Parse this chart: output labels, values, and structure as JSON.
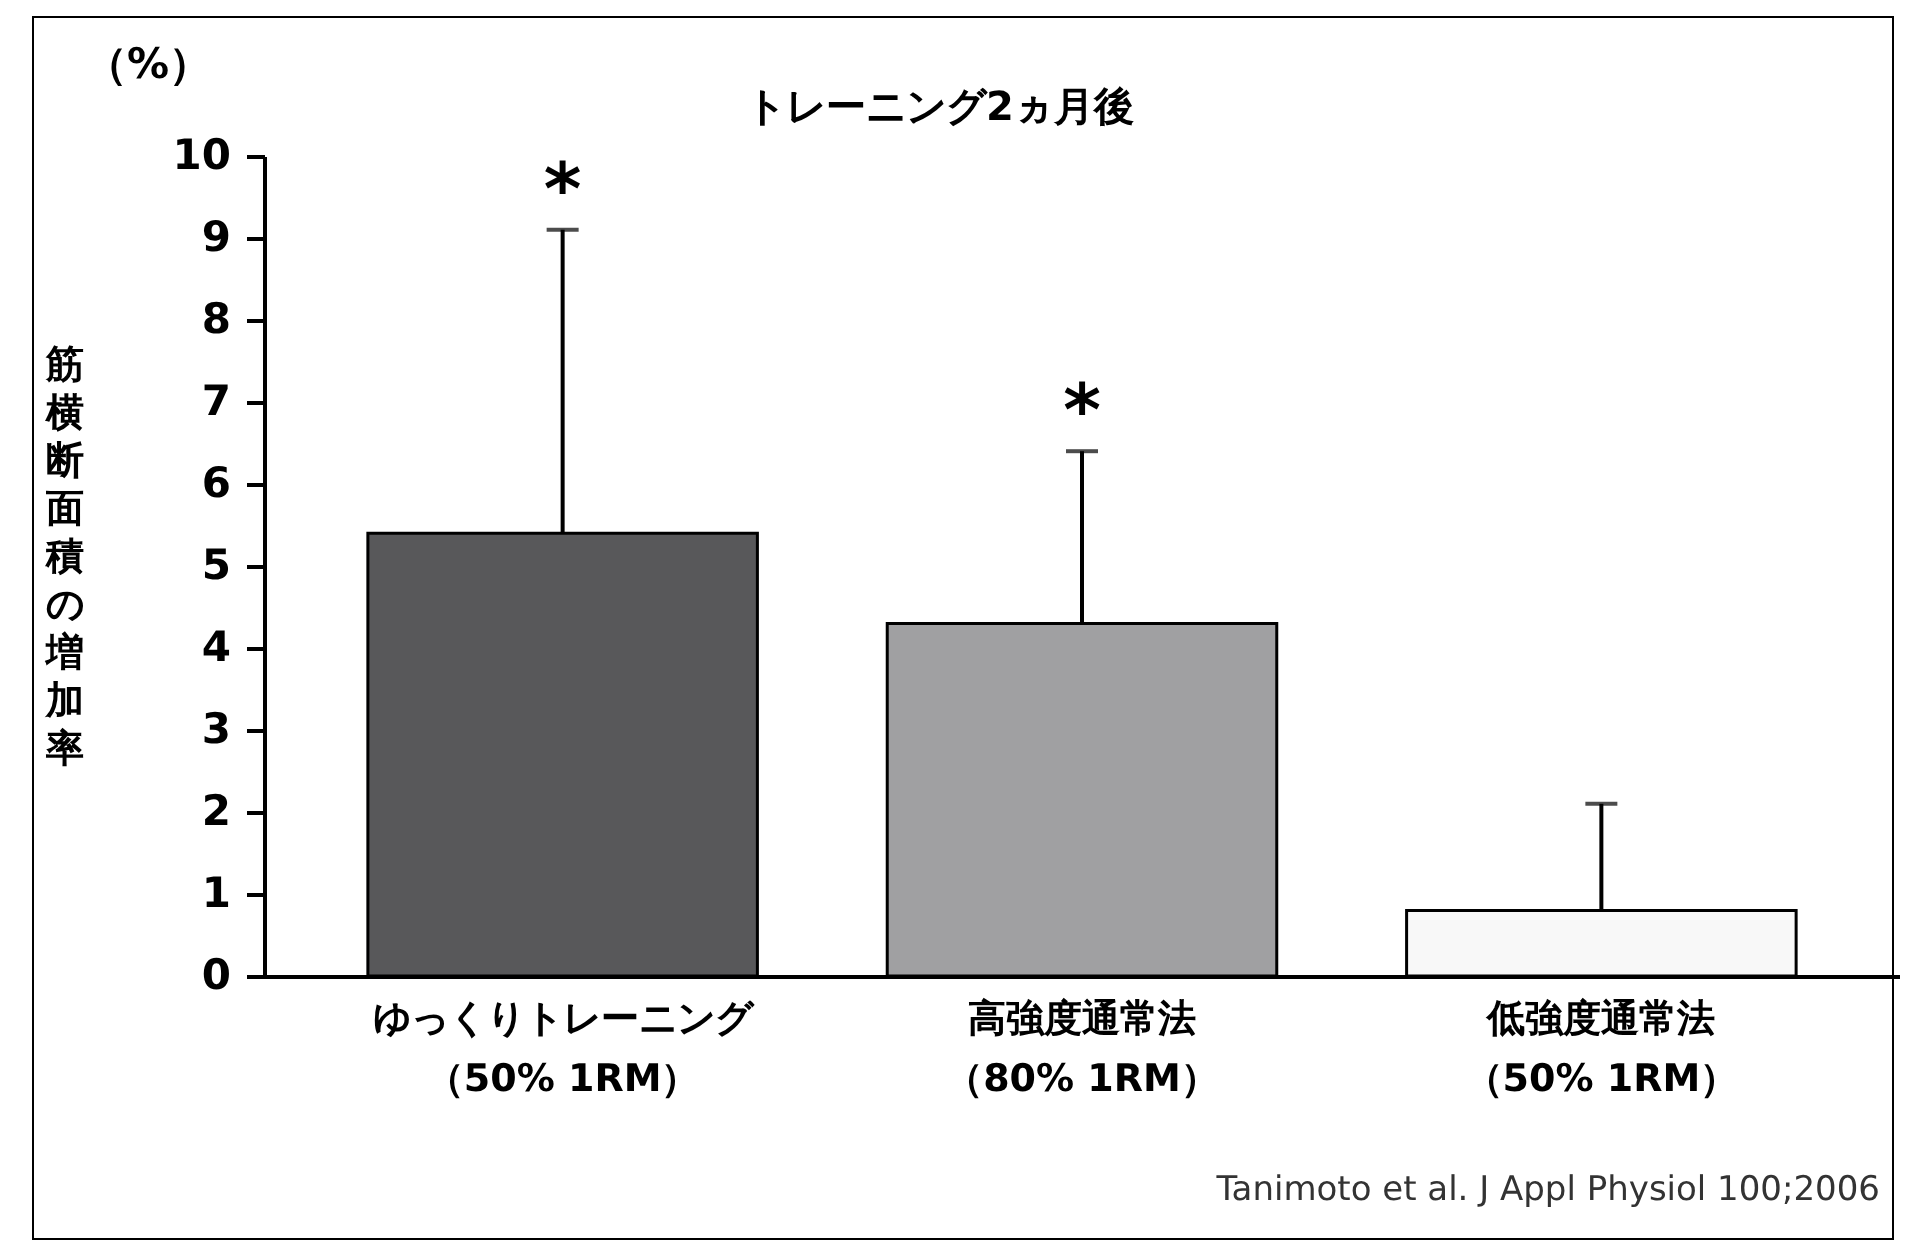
{
  "chart_data": {
    "type": "bar",
    "title": "トレーニング2ヵ月後",
    "ylabel": "筋横断面積の増加率",
    "categories": [
      "ゆっくりトレーニング（50% 1RM）",
      "高強度通常法（80% 1RM）",
      "低強度通常法（50% 1RM）"
    ],
    "values": [
      5.4,
      4.3,
      0.8
    ],
    "colors": [
      "#58585a",
      "#a0a0a2",
      "#f8f8f8"
    ],
    "errors": [
      [
        5.4,
        9.1
      ],
      [
        4.3,
        6.4
      ],
      [
        0.8,
        2.1
      ]
    ],
    "ylim": [
      0,
      10
    ],
    "yticks": [
      0,
      1,
      2,
      3,
      4,
      5,
      6,
      7,
      8,
      9,
      10
    ],
    "grid": false,
    "annotations": [
      "（%）",
      "*",
      "*",
      "Tanimoto et al. J Appl Physiol 100;2006"
    ]
  }
}
